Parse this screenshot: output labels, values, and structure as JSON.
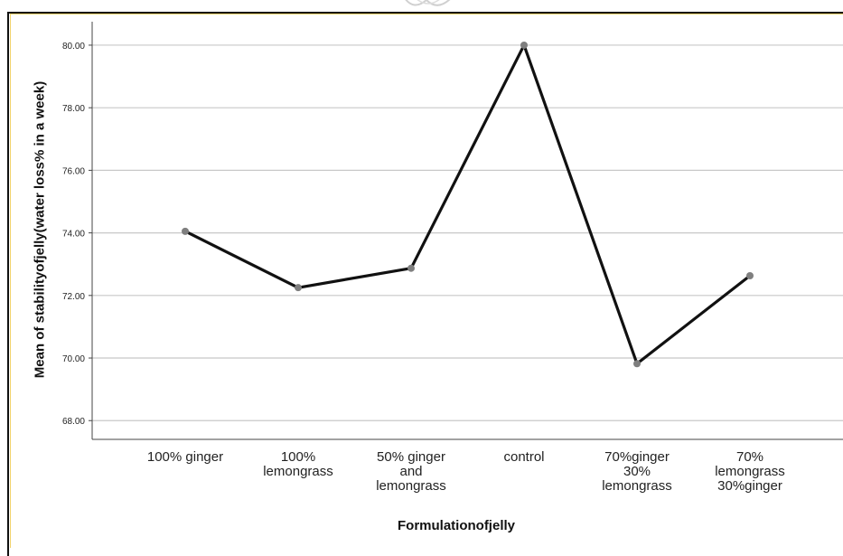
{
  "chart_data": {
    "type": "line",
    "title": "",
    "xlabel": "Formulationofjelly",
    "ylabel": "Mean of stabilityofjelly(water loss% in a week)",
    "categories": [
      "100% ginger",
      "100% lemongrass",
      "50% ginger and lemongrass",
      "control",
      "70%ginger 30% lemongrass",
      "70% lemongrass 30%ginger"
    ],
    "category_label_lines": [
      [
        "100% ginger"
      ],
      [
        "100%",
        "lemongrass"
      ],
      [
        "50% ginger",
        "and",
        "lemongrass"
      ],
      [
        "control"
      ],
      [
        "70%ginger",
        "30%",
        "lemongrass"
      ],
      [
        "70%",
        "lemongrass",
        "30%ginger"
      ]
    ],
    "series": [
      {
        "values": [
          74.05,
          72.25,
          72.87,
          80.0,
          69.82,
          72.63
        ]
      }
    ],
    "ylim": [
      67.4,
      80.75
    ],
    "yticks": [
      68.0,
      70.0,
      72.0,
      74.0,
      76.0,
      78.0,
      80.0
    ],
    "ytick_labels": [
      "68.00",
      "70.00",
      "72.00",
      "74.00",
      "76.00",
      "78.00",
      "80.00"
    ],
    "grid": true,
    "colors": {
      "line": "#111111",
      "marker": "#7f7f7f",
      "grid": "#c8c8c8",
      "axis": "#444444"
    }
  }
}
